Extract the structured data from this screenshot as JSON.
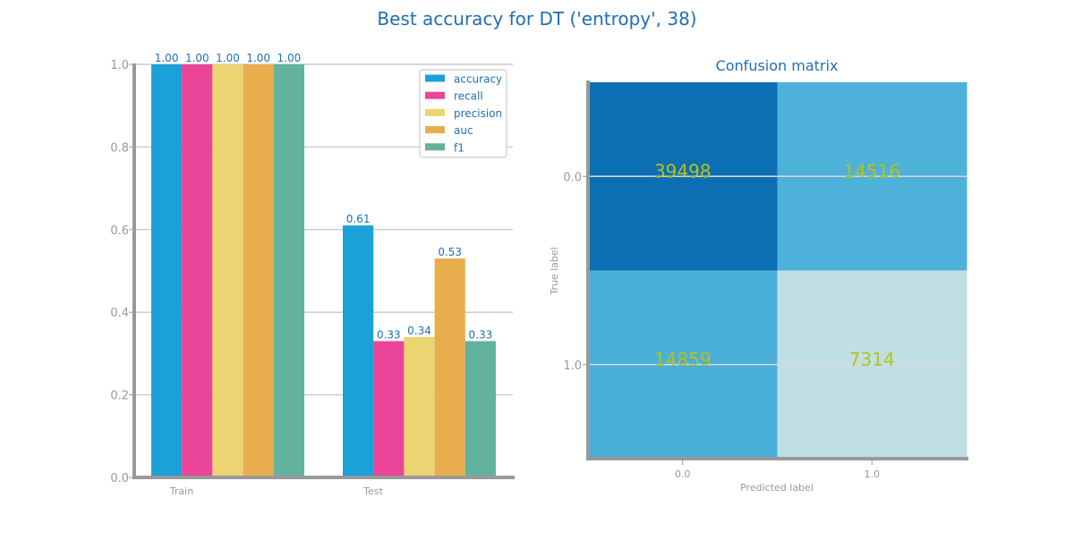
{
  "suptitle": "Best accuracy for DT ('entropy', 38)",
  "colors": {
    "title": "#1f6fb4",
    "bar_label": "#1f6fb4",
    "tick": "#999999",
    "axis": "#999999",
    "grid": "#cccccc",
    "annot": "#b5c21b",
    "series": [
      "#1aa1d8",
      "#ea4599",
      "#ebd472",
      "#e8ad4c",
      "#63b29d"
    ],
    "matrix": [
      [
        "#0d6fb3",
        "#4eb1d9"
      ],
      [
        "#4ab0d9",
        "#bfdfe2"
      ]
    ]
  },
  "chart_data": [
    {
      "type": "bar",
      "title": "",
      "categories": [
        "Train",
        "Test"
      ],
      "series": [
        {
          "name": "accuracy",
          "values": [
            1.0,
            0.61
          ]
        },
        {
          "name": "recall",
          "values": [
            1.0,
            0.33
          ]
        },
        {
          "name": "precision",
          "values": [
            1.0,
            0.34
          ]
        },
        {
          "name": "auc",
          "values": [
            1.0,
            0.53
          ]
        },
        {
          "name": "f1",
          "values": [
            1.0,
            0.33
          ]
        }
      ],
      "value_labels": [
        [
          "1.00",
          "0.61"
        ],
        [
          "1.00",
          "0.33"
        ],
        [
          "1.00",
          "0.34"
        ],
        [
          "1.00",
          "0.53"
        ],
        [
          "1.00",
          "0.33"
        ]
      ],
      "ylim": [
        0,
        1.0
      ],
      "yticks": [
        "0.0",
        "0.2",
        "0.4",
        "0.6",
        "0.8",
        "1.0"
      ],
      "grid": true,
      "legend_position": "top-right"
    },
    {
      "type": "heatmap",
      "title": "Confusion matrix",
      "xlabel": "Predicted label",
      "ylabel": "True label",
      "xticks": [
        "0.0",
        "1.0"
      ],
      "yticks": [
        "0.0",
        "1.0"
      ],
      "values": [
        [
          39498,
          14516
        ],
        [
          14859,
          7314
        ]
      ]
    }
  ]
}
